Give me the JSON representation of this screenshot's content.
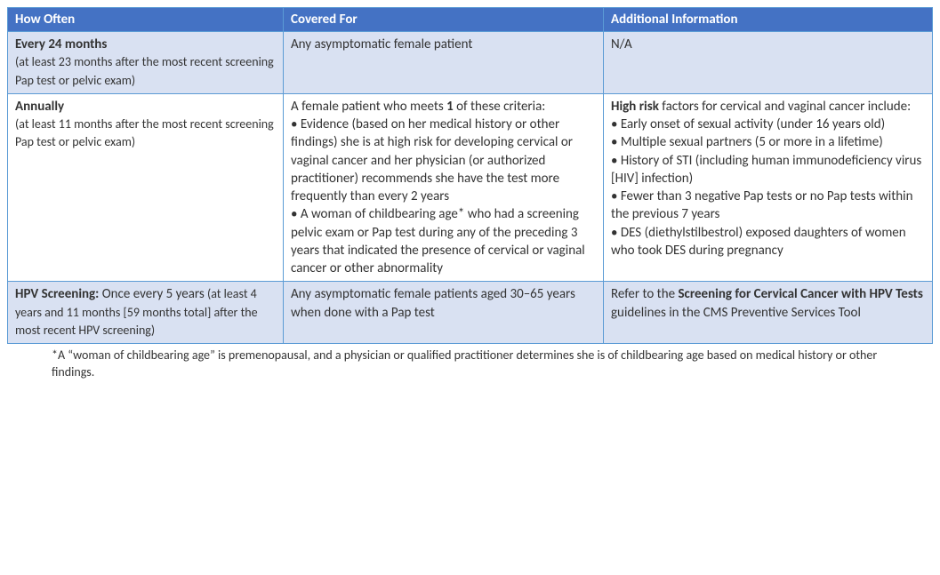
{
  "table": {
    "border_color": "#5b9bd5",
    "header_bg": "#4472c4",
    "header_text_color": "#ffffff",
    "row_alt_bg": "#d9e1f2",
    "row_bg": "#ffffff",
    "columns": [
      {
        "key": "how_often",
        "label": "How Often"
      },
      {
        "key": "covered_for",
        "label": "Covered For"
      },
      {
        "key": "additional",
        "label": "Additional Information"
      }
    ],
    "rows": [
      {
        "bg": "#d9e1f2",
        "how_often_bold": "Every 24 months",
        "how_often_note": "(at least 23 months after the most recent screening Pap test or pelvic exam)",
        "covered_text": "Any asymptomatic female patient",
        "additional_text": "N/A"
      },
      {
        "bg": "#ffffff",
        "how_often_bold": "Annually",
        "how_often_note": "(at least 11 months after the most recent screening Pap test or pelvic exam)",
        "covered_lead": "A female patient who meets ",
        "covered_bold_inner": "1",
        "covered_lead_after": " of these criteria:",
        "covered_bullets": [
          "Evidence (based on her medical history or other findings) she is at high risk for developing cervical or vaginal cancer and her physician (or authorized practitioner) recommends she have the test more frequently than every 2 years",
          "A woman of childbearing age* who had a screening pelvic exam or Pap test during any of the preceding 3 years that indicated the presence of cervical or vaginal cancer or other abnormality"
        ],
        "additional_lead_bold": "High risk",
        "additional_lead_after": " factors for cervical and vaginal cancer include:",
        "additional_bullets": [
          "Early onset of sexual activity (under 16 years old)",
          "Multiple sexual partners (5 or more in a lifetime)",
          "History of STI (including human immunodeficiency virus [HIV] infection)",
          "Fewer than 3 negative Pap tests or no Pap tests within the previous 7 years",
          "DES (diethylstilbestrol) exposed daughters of women who took DES during pregnancy"
        ]
      },
      {
        "bg": "#d9e1f2",
        "how_often_bold": "HPV Screening:",
        "how_often_bold2": " Once every 5 years",
        "how_often_note": " (at least 4 years and 11 months [59 months total] after the most recent HPV screening)",
        "covered_text": "Any asymptomatic female patients aged 30–65 years when done with a Pap test",
        "additional_lead": "Refer to the ",
        "additional_bold": "Screening for Cervical Cancer with HPV Tests",
        "additional_after": " guidelines in the CMS Preventive Services Tool"
      }
    ]
  },
  "footnote": "*A “woman of childbearing age” is premenopausal, and a physician or qualified practitioner determines she is of childbearing age based on medical history or other findings."
}
